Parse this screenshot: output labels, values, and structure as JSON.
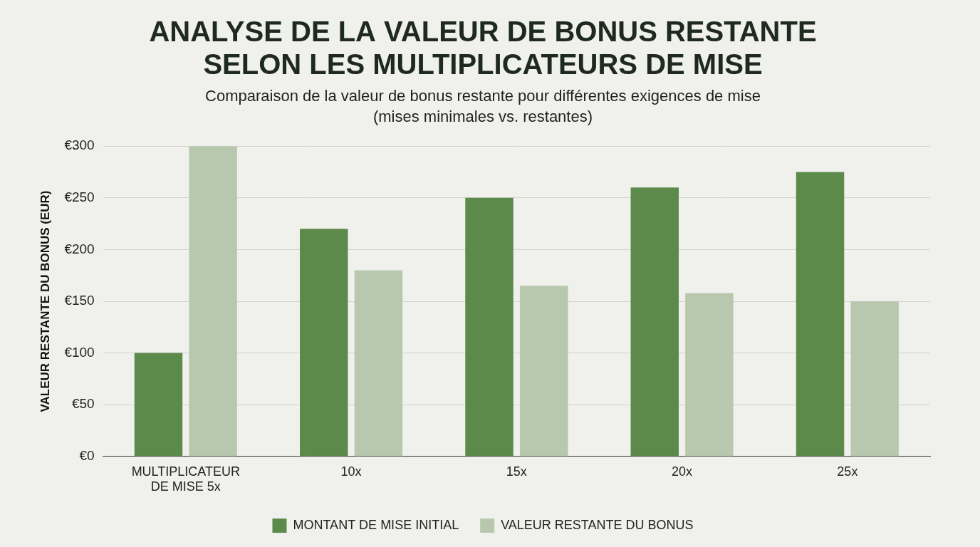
{
  "chart_data": {
    "type": "bar",
    "title": [
      "ANALYSE DE LA VALEUR DE BONUS RESTANTE",
      "SELON LES MULTIPLICATEURS DE MISE"
    ],
    "subtitle": [
      "Comparaison de la valeur de bonus restante pour différentes exigences de mise",
      "(mises minimales vs. restantes)"
    ],
    "y_label": "VALEUR RESTANTE DU BONUS (EUR)",
    "categories": [
      [
        "MULTIPLICATEUR",
        "DE MISE 5x"
      ],
      "10x",
      "15x",
      "20x",
      "25x"
    ],
    "series": [
      {
        "name": "MONTANT DE MISE INITIAL",
        "color": "#5b8a4b",
        "values": [
          100,
          220,
          250,
          260,
          275
        ]
      },
      {
        "name": "VALEUR RESTANTE DU BONUS",
        "color": "#b7c8ae",
        "values": [
          300,
          180,
          165,
          158,
          150
        ]
      }
    ],
    "ylim": [
      0,
      300
    ],
    "yticks": [
      {
        "value": 0,
        "label": "€0"
      },
      {
        "value": 50,
        "label": "€50"
      },
      {
        "value": 100,
        "label": "€100"
      },
      {
        "value": 150,
        "label": "€150"
      },
      {
        "value": 200,
        "label": "€200"
      },
      {
        "value": 250,
        "label": "€250"
      },
      {
        "value": 300,
        "label": "€300"
      }
    ],
    "grid": true,
    "legend": "bottom"
  }
}
